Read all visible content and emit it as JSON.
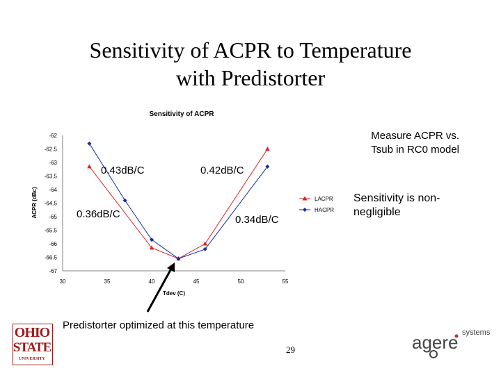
{
  "slide": {
    "title_line1": "Sensitivity of ACPR to Temperature",
    "title_line2": "with Predistorter",
    "note_measure_line1": "Measure ACPR vs.",
    "note_measure_line2": "Tsub in RC0 model",
    "note_sensitivity_line1": "Sensitivity is non-",
    "note_sensitivity_line2": "negligible",
    "note_optimized": "Predistorter optimized at this temperature",
    "page_number": "29"
  },
  "logos": {
    "osu_line1": "OHIO",
    "osu_line2": "STATE",
    "osu_line3": "UNIVERSITY",
    "agere_word": "agere",
    "agere_sub": "systems"
  },
  "chart_data": {
    "type": "line",
    "title": "Sensitivity of ACPR",
    "xlabel": "Tdev (C)",
    "ylabel": "ACPR (dBc)",
    "xlim": [
      30,
      55
    ],
    "ylim": [
      -67,
      -62
    ],
    "x_ticks": [
      "30",
      "35",
      "40",
      "45",
      "50",
      "55"
    ],
    "y_ticks": [
      "-62",
      "-62.5",
      "-63",
      "-63.5",
      "-64",
      "-64.5",
      "-65",
      "-65.5",
      "-66",
      "-66.5",
      "-67"
    ],
    "grid": false,
    "legend_position": "right",
    "series": [
      {
        "name": "LACPR",
        "color": "#e02020",
        "marker": "triangle",
        "x": [
          33,
          40,
          43,
          46,
          53
        ],
        "y": [
          -63.15,
          -66.15,
          -66.55,
          -66,
          -62.5
        ]
      },
      {
        "name": "HACPR",
        "color": "#1a2aa0",
        "marker": "diamond",
        "x": [
          33,
          37,
          40,
          43,
          46,
          53
        ],
        "y": [
          -62.3,
          -64.4,
          -65.85,
          -66.55,
          -66.2,
          -63.15
        ]
      }
    ],
    "annotations": [
      "0.43dB/C",
      "0.42dB/C",
      "0.36dB/C",
      "0.34dB/C"
    ]
  }
}
